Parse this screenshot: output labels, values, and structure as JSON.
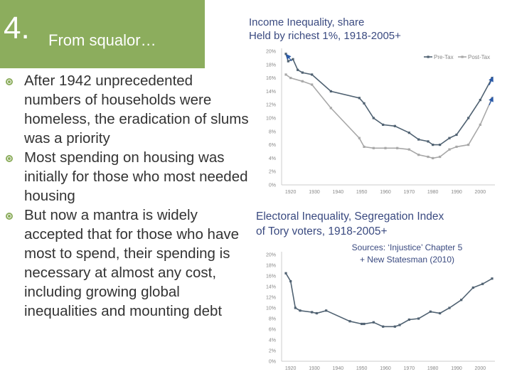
{
  "slide": {
    "number": "4.",
    "title": "From squalor…",
    "accent_color": "#8cad5d",
    "text_color": "#333333",
    "chart_title_color": "#3a4a80"
  },
  "bullets": [
    "After 1942 unprecedented numbers of households were homeless, the eradication of slums was a priority",
    "Most spending on housing was initially for those who most needed housing",
    "But now a mantra is widely accepted that for those who have most to spend, their spending is necessary at almost any cost, including growing global inequalities and mounting debt"
  ],
  "sources": {
    "line1": "Sources: ‘Injustice’ Chapter 5",
    "line2": "+ New Statesman (2010)"
  },
  "chart_data": [
    {
      "type": "line",
      "title_line1": "Income Inequality, share",
      "title_line2": "Held by richest 1%, 1918-2005+",
      "xlabel": "",
      "ylabel": "",
      "xlim": [
        1918,
        2005
      ],
      "ylim": [
        0,
        20
      ],
      "x_ticks": [
        1920,
        1930,
        1940,
        1950,
        1960,
        1970,
        1980,
        1990,
        2000
      ],
      "y_ticks": [
        "0%",
        "2%",
        "4%",
        "6%",
        "8%",
        "10%",
        "12%",
        "14%",
        "16%",
        "18%",
        "20%"
      ],
      "legend_position": "top-right",
      "grid": false,
      "series": [
        {
          "name": "Pre-Tax",
          "color": "#506272",
          "points": [
            [
              1918,
              19.6
            ],
            [
              1919,
              18.5
            ],
            [
              1921,
              18.8
            ],
            [
              1923,
              17.2
            ],
            [
              1925,
              16.8
            ],
            [
              1929,
              16.5
            ],
            [
              1937,
              14.0
            ],
            [
              1949,
              13.0
            ],
            [
              1951,
              12.2
            ],
            [
              1955,
              10.0
            ],
            [
              1959,
              9.0
            ],
            [
              1964,
              8.8
            ],
            [
              1970,
              7.8
            ],
            [
              1974,
              6.8
            ],
            [
              1978,
              6.5
            ],
            [
              1980,
              6.0
            ],
            [
              1983,
              6.0
            ],
            [
              1987,
              7.0
            ],
            [
              1990,
              7.5
            ],
            [
              1995,
              10.0
            ],
            [
              2000,
              12.7
            ],
            [
              2005,
              16.0
            ]
          ]
        },
        {
          "name": "Post-Tax",
          "color": "#a8a8a8",
          "points": [
            [
              1918,
              16.5
            ],
            [
              1920,
              16.0
            ],
            [
              1925,
              15.5
            ],
            [
              1929,
              15.0
            ],
            [
              1937,
              11.5
            ],
            [
              1949,
              7.0
            ],
            [
              1951,
              5.7
            ],
            [
              1955,
              5.5
            ],
            [
              1960,
              5.5
            ],
            [
              1965,
              5.5
            ],
            [
              1970,
              5.3
            ],
            [
              1974,
              4.5
            ],
            [
              1978,
              4.2
            ],
            [
              1980,
              4.0
            ],
            [
              1983,
              4.2
            ],
            [
              1987,
              5.3
            ],
            [
              1990,
              5.7
            ],
            [
              1995,
              6.0
            ],
            [
              2000,
              9.0
            ],
            [
              2005,
              13.0
            ]
          ]
        }
      ],
      "trend_marker_color": "#2a5aa8"
    },
    {
      "type": "line",
      "title_line1": "Electoral Inequality, Segregation Index",
      "title_line2": "of Tory voters, 1918-2005+",
      "xlabel": "",
      "ylabel": "",
      "xlim": [
        1918,
        2005
      ],
      "ylim": [
        0,
        20
      ],
      "x_ticks": [
        1920,
        1930,
        1940,
        1950,
        1960,
        1970,
        1980,
        1990,
        2000
      ],
      "y_ticks": [
        "0%",
        "2%",
        "4%",
        "6%",
        "8%",
        "10%",
        "12%",
        "14%",
        "16%",
        "18%",
        "20%"
      ],
      "grid": false,
      "series": [
        {
          "color": "#506272",
          "points": [
            [
              1918,
              16.5
            ],
            [
              1920,
              15.0
            ],
            [
              1922,
              10.0
            ],
            [
              1924,
              9.5
            ],
            [
              1929,
              9.2
            ],
            [
              1931,
              9.0
            ],
            [
              1935,
              9.5
            ],
            [
              1945,
              7.5
            ],
            [
              1950,
              7.0
            ],
            [
              1951,
              7.0
            ],
            [
              1955,
              7.3
            ],
            [
              1959,
              6.5
            ],
            [
              1964,
              6.5
            ],
            [
              1966,
              6.8
            ],
            [
              1970,
              7.8
            ],
            [
              1974,
              8.0
            ],
            [
              1979,
              9.3
            ],
            [
              1983,
              9.0
            ],
            [
              1987,
              10.0
            ],
            [
              1992,
              11.5
            ],
            [
              1997,
              13.8
            ],
            [
              2001,
              14.5
            ],
            [
              2005,
              15.5
            ]
          ]
        }
      ]
    }
  ]
}
